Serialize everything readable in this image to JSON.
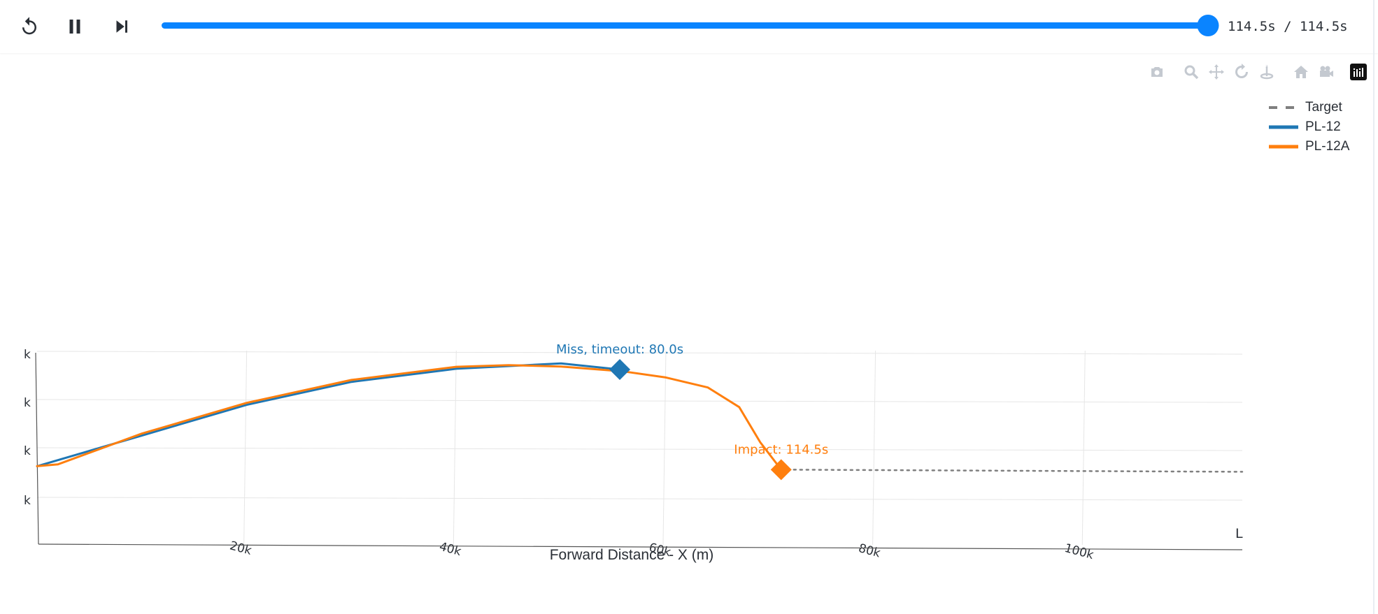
{
  "player": {
    "time_display": "114.5s / 114.5s",
    "progress": 1.0,
    "controls": [
      "replay-icon",
      "pause-icon",
      "skip-to-end-icon"
    ],
    "accent_color": "#0a84ff"
  },
  "modebar": {
    "icons": [
      "camera-icon",
      "zoom-icon",
      "pan-icon",
      "orbit-rotation-icon",
      "turntable-rotation-icon",
      "home-icon",
      "reset-camera-icon",
      "plotly-logo-icon"
    ]
  },
  "chart_data": {
    "type": "line",
    "xlabel": "Forward Distance - X (m)",
    "x_ticks": [
      "20k",
      "40k",
      "60k",
      "80k",
      "100k"
    ],
    "x_tick_values": [
      20000,
      40000,
      60000,
      80000,
      100000
    ],
    "y_ticks": [
      "k",
      "k",
      "k",
      "k"
    ],
    "corner_label": "L",
    "xlim": [
      0,
      115000
    ],
    "ylim": [
      -1,
      4
    ],
    "grid": true,
    "legend_position": "top-right",
    "series": [
      {
        "name": "Target",
        "color": "#7f7f7f",
        "dash": "dot",
        "x": [
          71000,
          80000,
          90000,
          100000,
          110000,
          115000
        ],
        "y": [
          1,
          1,
          1,
          1,
          1,
          1
        ]
      },
      {
        "name": "PL-12",
        "color": "#1f77b4",
        "x": [
          0,
          10000,
          20000,
          30000,
          40000,
          50000,
          55600
        ],
        "y": [
          1,
          1.8,
          2.6,
          3.2,
          3.55,
          3.7,
          3.55
        ]
      },
      {
        "name": "PL-12A",
        "color": "#ff7f0e",
        "x": [
          0,
          2000,
          5000,
          10000,
          20000,
          30000,
          40000,
          45000,
          50000,
          56000,
          60000,
          64000,
          67000,
          69000,
          71000
        ],
        "y": [
          1,
          1.05,
          1.35,
          1.85,
          2.65,
          3.25,
          3.6,
          3.65,
          3.62,
          3.5,
          3.35,
          3.1,
          2.6,
          1.7,
          1.0
        ]
      }
    ],
    "annotations": [
      {
        "text": "Miss, timeout: 80.0s",
        "color": "#1f77b4",
        "x": 55600,
        "y": 3.55
      },
      {
        "text": "Impact: 114.5s",
        "color": "#ff7f0e",
        "x": 71000,
        "y": 1.0
      }
    ]
  }
}
